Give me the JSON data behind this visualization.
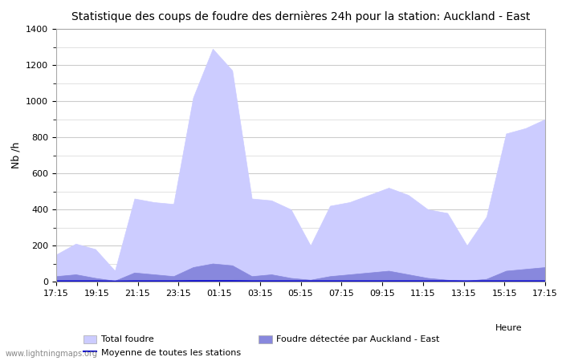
{
  "title": "Statistique des coups de foudre des dernières 24h pour la station: Auckland - East",
  "ylabel": "Nb /h",
  "xlabel": "Heure",
  "watermark": "www.lightningmaps.org",
  "legend": {
    "total_foudre": "Total foudre",
    "moyenne": "Moyenne de toutes les stations",
    "foudre_station": "Foudre détectée par Auckland - East"
  },
  "ylim": [
    0,
    1400
  ],
  "color_total": "#ccccff",
  "color_station": "#8888dd",
  "color_moyenne": "#0000cc",
  "x_labels": [
    "17:15",
    "19:15",
    "21:15",
    "23:15",
    "01:15",
    "03:15",
    "05:15",
    "07:15",
    "09:15",
    "11:15",
    "13:15",
    "15:15",
    "17:15"
  ],
  "total_foudre": [
    150,
    210,
    180,
    60,
    460,
    440,
    430,
    1020,
    1290,
    1170,
    460,
    450,
    400,
    200,
    420,
    440,
    480,
    520,
    480,
    400,
    380,
    200,
    360,
    820,
    850,
    900
  ],
  "station_foudre": [
    30,
    40,
    20,
    5,
    50,
    40,
    30,
    80,
    100,
    90,
    30,
    40,
    20,
    10,
    30,
    40,
    50,
    60,
    40,
    20,
    10,
    5,
    15,
    60,
    70,
    80
  ],
  "moyenne": [
    2,
    2,
    2,
    1,
    2,
    2,
    2,
    3,
    3,
    3,
    2,
    2,
    2,
    2,
    2,
    2,
    2,
    2,
    2,
    2,
    2,
    2,
    2,
    2,
    2,
    2
  ],
  "n_points": 26,
  "background_color": "#ffffff",
  "grid_color": "#cccccc"
}
